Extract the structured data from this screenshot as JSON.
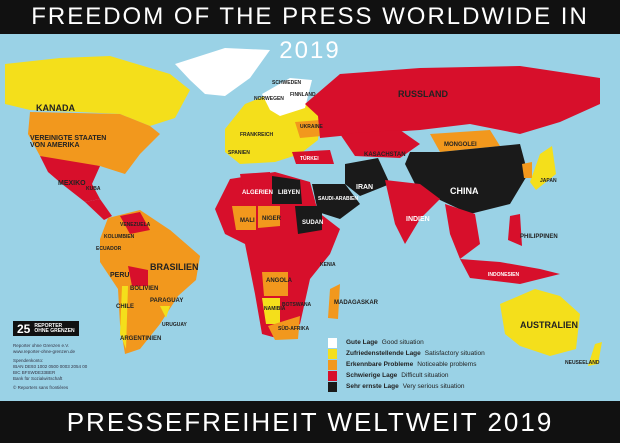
{
  "title": "FREEDOM OF THE PRESS WORLDWIDE IN 2019",
  "subtitle": "PRESSEFREIHEIT WELTWEIT 2019",
  "colors": {
    "ocean": "#9ad2e6",
    "good": "#ffffff",
    "satisfactory": "#f4df1b",
    "noticeable": "#f2981d",
    "difficult": "#d70f2b",
    "very_serious": "#1a1a1a"
  },
  "legend": [
    {
      "de": "Gute Lage",
      "en": "Good situation",
      "color": "#ffffff"
    },
    {
      "de": "Zufriedenstellende Lage",
      "en": "Satisfactory situation",
      "color": "#f4df1b"
    },
    {
      "de": "Erkennbare Probleme",
      "en": "Noticeable problems",
      "color": "#f2981d"
    },
    {
      "de": "Schwierige Lage",
      "en": "Difficult situation",
      "color": "#d70f2b"
    },
    {
      "de": "Sehr ernste Lage",
      "en": "Very serious situation",
      "color": "#1a1a1a"
    }
  ],
  "logo": {
    "number": "25",
    "line1": "REPORTER",
    "line2": "OHNE GRENZEN"
  },
  "info": [
    "Reporter ohne Grenzen e.V.",
    "www.reporter-ohne-grenzen.de",
    "Spendenkonto:",
    "IBAN DE93 1002 0500 0003 2054 00",
    "BIC BFSWDE33BER",
    "Bank für Sozialwirtschaft",
    "© Reporters sans frontières"
  ],
  "countries": [
    "KANADA",
    "VEREINIGTE STAATEN VON AMERIKA",
    "MEXIKO",
    "KUBA",
    "VENEZUELA",
    "KOLUMBIEN",
    "ECUADOR",
    "PERU",
    "BRASILIEN",
    "BOLIVIEN",
    "PARAGUAY",
    "CHILE",
    "URUGUAY",
    "ARGENTINIEN",
    "RUSSLAND",
    "KASACHSTAN",
    "MONGOLEI",
    "CHINA",
    "INDIEN",
    "IRAN",
    "TÜRKEI",
    "UKRAINE",
    "SCHWEDEN",
    "FINNLAND",
    "NORWEGEN",
    "FRANKREICH",
    "SPANIEN",
    "ALGERIEN",
    "LIBYEN",
    "MALI",
    "NIGER",
    "SUDAN",
    "KENIA",
    "ANGOLA",
    "NAMIBIA",
    "BOTSWANA",
    "SÜD-AFRIKA",
    "MADAGASKAR",
    "SAUDI-ARABIEN",
    "JAPAN",
    "PHILIPPINEN",
    "INDONESIEN",
    "AUSTRALIEN",
    "NEUSEELAND"
  ]
}
